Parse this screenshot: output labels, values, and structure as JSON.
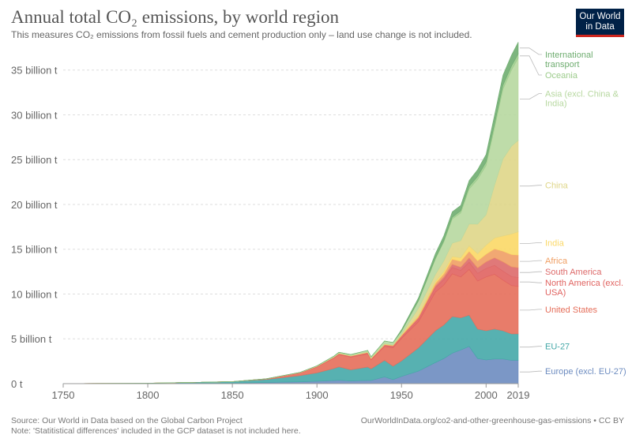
{
  "header": {
    "title": "Annual total CO₂ emissions, by world region",
    "subtitle": "This measures CO₂ emissions from fossil fuels and cement production only – land use change is not included."
  },
  "logo": {
    "line1": "Our World",
    "line2": "in Data",
    "bg_color": "#002147",
    "accent_color": "#ce261e"
  },
  "footer": {
    "source": "Source: Our World in Data based on the Global Carbon Project",
    "note": "Note: 'Statitistical differences' included in the GCP dataset is not included here.",
    "url": "OurWorldInData.org/co2-and-other-greenhouse-gas-emissions",
    "separator": " • ",
    "license": "CC BY"
  },
  "chart_data": {
    "type": "area",
    "stacked": true,
    "title": "Annual total CO₂ emissions, by world region",
    "xlabel": "",
    "ylabel": "",
    "xlim": [
      1750,
      2019
    ],
    "ylim": [
      0,
      37
    ],
    "x_ticks": [
      {
        "value": 1750,
        "label": "1750"
      },
      {
        "value": 1800,
        "label": "1800"
      },
      {
        "value": 1850,
        "label": "1850"
      },
      {
        "value": 1900,
        "label": "1900"
      },
      {
        "value": 1950,
        "label": "1950"
      },
      {
        "value": 2000,
        "label": "2000"
      },
      {
        "value": 2019,
        "label": "2019"
      }
    ],
    "y_ticks": [
      {
        "value": 0,
        "label": "0 t"
      },
      {
        "value": 5,
        "label": "5 billion t"
      },
      {
        "value": 10,
        "label": "10 billion t"
      },
      {
        "value": 15,
        "label": "15 billion t"
      },
      {
        "value": 20,
        "label": "20 billion t"
      },
      {
        "value": 25,
        "label": "25 billion t"
      },
      {
        "value": 30,
        "label": "30 billion t"
      },
      {
        "value": 35,
        "label": "35 billion t"
      }
    ],
    "unit": "billion t",
    "x": [
      1750,
      1800,
      1850,
      1870,
      1890,
      1900,
      1910,
      1913,
      1920,
      1930,
      1932,
      1940,
      1945,
      1950,
      1960,
      1970,
      1975,
      1980,
      1985,
      1990,
      1995,
      2000,
      2005,
      2010,
      2015,
      2019
    ],
    "series": [
      {
        "name": "Europe (excl. EU-27)",
        "legend": "Europe (excl. EU-27)",
        "color": "#6d8cc0",
        "values": [
          0.002,
          0.02,
          0.07,
          0.12,
          0.2,
          0.26,
          0.34,
          0.38,
          0.3,
          0.36,
          0.35,
          0.75,
          0.45,
          0.8,
          1.4,
          2.35,
          2.8,
          3.4,
          3.75,
          4.15,
          2.8,
          2.65,
          2.75,
          2.75,
          2.6,
          2.6
        ]
      },
      {
        "name": "EU-27",
        "legend": "EU-27",
        "color": "#45a8a8",
        "values": [
          0.007,
          0.03,
          0.15,
          0.35,
          0.7,
          0.95,
          1.35,
          1.5,
          1.25,
          1.5,
          1.3,
          1.85,
          1.5,
          1.75,
          2.6,
          3.55,
          3.75,
          4.1,
          3.6,
          3.5,
          3.3,
          3.25,
          3.35,
          3.15,
          2.95,
          2.95
        ]
      },
      {
        "name": "United States",
        "legend": "United States",
        "color": "#e56e5a",
        "values": [
          0.0,
          0.0,
          0.01,
          0.06,
          0.3,
          0.66,
          1.15,
          1.35,
          1.4,
          1.45,
          1.0,
          1.55,
          2.05,
          2.5,
          2.9,
          4.3,
          4.45,
          4.75,
          4.55,
          5.1,
          5.35,
          6.0,
          6.1,
          5.65,
          5.4,
          5.3
        ]
      },
      {
        "name": "North America (excl. USA)",
        "legend": "North America (excl. USA)",
        "color": "#e06360",
        "values": [
          0.0,
          0.0,
          0.0,
          0.005,
          0.02,
          0.04,
          0.07,
          0.08,
          0.09,
          0.1,
          0.08,
          0.12,
          0.14,
          0.18,
          0.3,
          0.5,
          0.6,
          0.7,
          0.72,
          0.8,
          0.85,
          0.95,
          1.0,
          1.0,
          1.0,
          1.0
        ]
      },
      {
        "name": "South America",
        "legend": "South America",
        "color": "#dd6a6a",
        "values": [
          0.0,
          0.0,
          0.0,
          0.002,
          0.006,
          0.01,
          0.02,
          0.03,
          0.03,
          0.04,
          0.04,
          0.05,
          0.06,
          0.08,
          0.13,
          0.21,
          0.3,
          0.38,
          0.38,
          0.5,
          0.62,
          0.75,
          0.85,
          1.05,
          1.1,
          1.1
        ]
      },
      {
        "name": "Africa",
        "legend": "Africa",
        "color": "#f09f64",
        "values": [
          0.0,
          0.0,
          0.0,
          0.001,
          0.003,
          0.01,
          0.02,
          0.02,
          0.02,
          0.03,
          0.03,
          0.05,
          0.06,
          0.09,
          0.16,
          0.27,
          0.35,
          0.55,
          0.65,
          0.72,
          0.78,
          0.85,
          1.0,
          1.18,
          1.35,
          1.4
        ]
      },
      {
        "name": "India",
        "legend": "India",
        "color": "#fbd866",
        "values": [
          0.0,
          0.0,
          0.0,
          0.001,
          0.004,
          0.01,
          0.02,
          0.02,
          0.02,
          0.03,
          0.03,
          0.03,
          0.04,
          0.06,
          0.12,
          0.2,
          0.25,
          0.3,
          0.4,
          0.6,
          0.8,
          1.0,
          1.2,
          1.7,
          2.3,
          2.6
        ]
      },
      {
        "name": "China",
        "legend": "China",
        "color": "#dfd688",
        "values": [
          0.0,
          0.0,
          0.0,
          0.0,
          0.0,
          0.0,
          0.01,
          0.01,
          0.02,
          0.03,
          0.03,
          0.04,
          0.02,
          0.08,
          0.8,
          0.8,
          1.2,
          1.5,
          1.9,
          2.45,
          3.3,
          3.4,
          5.9,
          8.6,
          9.8,
          10.2
        ]
      },
      {
        "name": "Asia (excl. China & India)",
        "legend": "Asia (excl. China & India)",
        "color": "#b7d8a0",
        "values": [
          0.0,
          0.0,
          0.001,
          0.005,
          0.02,
          0.04,
          0.08,
          0.1,
          0.1,
          0.16,
          0.13,
          0.3,
          0.25,
          0.3,
          0.8,
          1.7,
          2.1,
          2.7,
          3.1,
          3.9,
          5.0,
          5.5,
          6.4,
          7.8,
          8.5,
          9.2
        ]
      },
      {
        "name": "Oceania",
        "legend": "Oceania",
        "color": "#9dcc8c",
        "values": [
          0.0,
          0.0,
          0.0,
          0.002,
          0.005,
          0.008,
          0.015,
          0.015,
          0.017,
          0.02,
          0.018,
          0.025,
          0.03,
          0.04,
          0.07,
          0.12,
          0.15,
          0.2,
          0.23,
          0.3,
          0.33,
          0.38,
          0.42,
          0.45,
          0.45,
          0.46
        ]
      },
      {
        "name": "International transport",
        "legend": "International transport",
        "color": "#6fad70",
        "values": [
          0.0,
          0.0,
          0.0,
          0.0,
          0.0,
          0.0,
          0.0,
          0.0,
          0.0,
          0.0,
          0.0,
          0.0,
          0.0,
          0.15,
          0.3,
          0.5,
          0.55,
          0.6,
          0.6,
          0.65,
          0.75,
          0.85,
          1.0,
          1.1,
          1.2,
          1.3
        ]
      }
    ]
  }
}
